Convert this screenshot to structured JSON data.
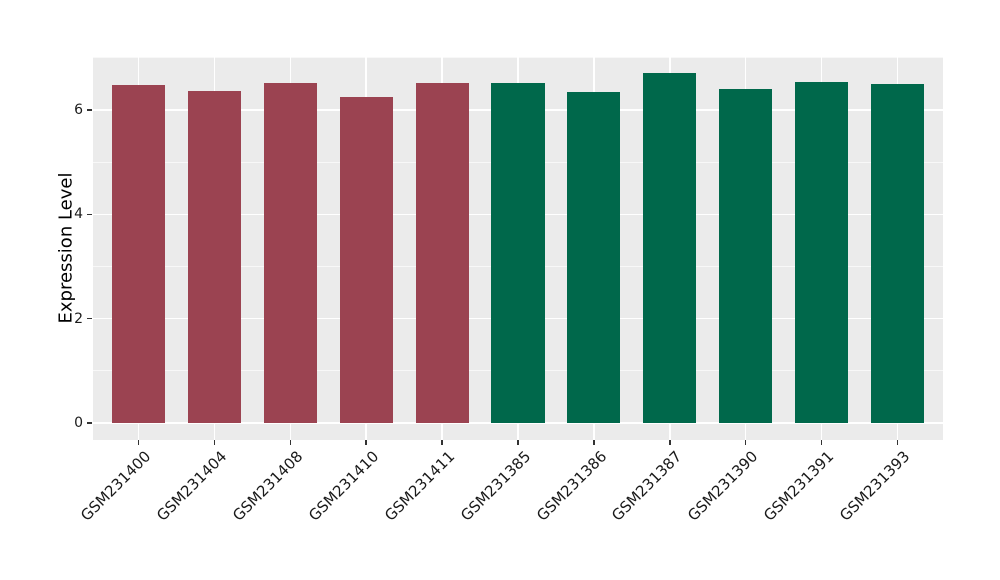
{
  "chart_data": {
    "type": "bar",
    "title": "",
    "xlabel": "",
    "ylabel": "Expression Level",
    "categories": [
      "GSM231400",
      "GSM231404",
      "GSM231408",
      "GSM231410",
      "GSM231411",
      "GSM231385",
      "GSM231386",
      "GSM231387",
      "GSM231390",
      "GSM231391",
      "GSM231393"
    ],
    "values": [
      6.48,
      6.36,
      6.52,
      6.24,
      6.52,
      6.52,
      6.34,
      6.7,
      6.41,
      6.54,
      6.5
    ],
    "bar_colors": [
      "#9B4351",
      "#9B4351",
      "#9B4351",
      "#9B4351",
      "#9B4351",
      "#00684B",
      "#00684B",
      "#00684B",
      "#00684B",
      "#00684B",
      "#00684B"
    ],
    "yticks": [
      0,
      2,
      4,
      6
    ],
    "minor_yticks": [
      1,
      3,
      5,
      7
    ],
    "ylim": [
      -0.33,
      7.02
    ],
    "bar_rel_width": 0.7,
    "x_tick_label_rotation": -45,
    "grid": "on",
    "legend_position": "none",
    "panel_bg": "#EBEBEB",
    "grid_major_color": "#FFFFFF",
    "grid_minor_color": "#FFFFFF",
    "tick_mark_color": "#333333",
    "tick_label_color": "#1a1a1a",
    "axis_title_color": "#000000"
  }
}
